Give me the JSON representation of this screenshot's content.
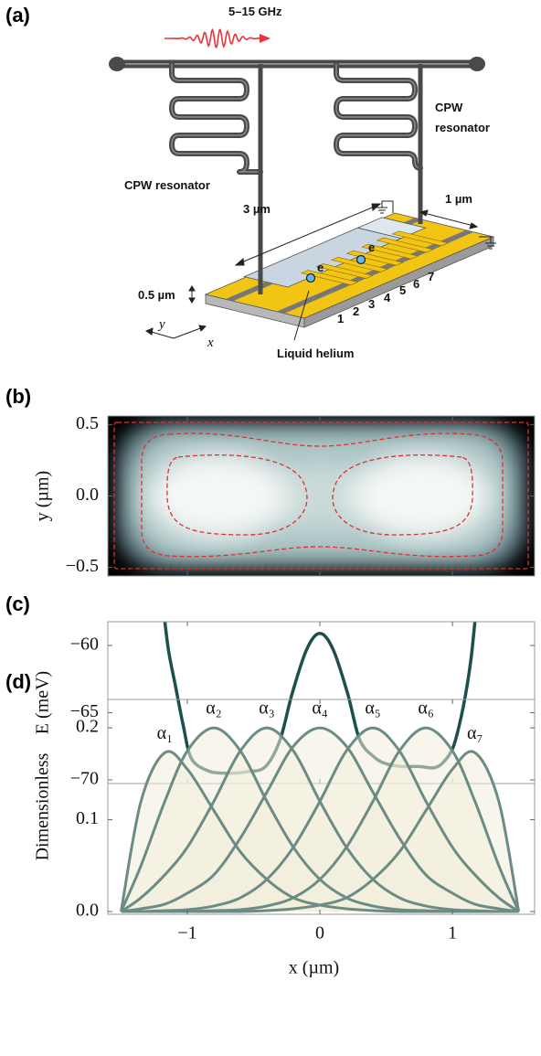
{
  "figure": {
    "panel_labels": [
      "(a)",
      "(b)",
      "(c)",
      "(d)"
    ]
  },
  "diagram": {
    "frequency": "5–15 GHz",
    "resonator_left": "CPW resonator",
    "resonator_right": [
      "CPW",
      "resonator"
    ],
    "length": "3 µm",
    "width": "1 µm",
    "thickness": "0.5 µm",
    "helium": "Liquid helium",
    "electrodes": [
      "1",
      "2",
      "3",
      "4",
      "5",
      "6",
      "7"
    ],
    "electrons": [
      "e",
      "e"
    ],
    "axis_y": "y",
    "axis_x": "x"
  },
  "chart_data": [
    {
      "type": "heatmap",
      "ylabel": "y (µm)",
      "xlim": [
        -1.6,
        1.62
      ],
      "ylim": [
        -0.56,
        0.56
      ],
      "xticks": [
        -1,
        0,
        1
      ],
      "xtick_labels": false,
      "yticks": [
        0.5,
        {
          "value": 0,
          "label": "0.0"
        },
        {
          "value": -0.5,
          "label": "−0.5"
        }
      ]
    },
    {
      "type": "line",
      "ylabel": "E (meV)",
      "xlim": [
        -1.6,
        1.62
      ],
      "ylim": [
        -70.27,
        -58.23
      ],
      "xticks": [
        -1,
        0,
        1
      ],
      "xtick_labels": false,
      "yticks": [
        {
          "value": -60,
          "label": "−60"
        },
        {
          "value": -65,
          "label": "−65"
        },
        {
          "value": -70,
          "label": "−70"
        }
      ],
      "color": "#1d4f4b",
      "x": [
        -1.17,
        -1.14,
        -1.09,
        -1.03,
        -0.97,
        -0.85,
        -0.72,
        -0.55,
        -0.41,
        -0.3,
        -0.21,
        -0.1,
        0,
        0.1,
        0.21,
        0.3,
        0.41,
        0.5,
        0.62,
        0.75,
        0.86,
        0.93,
        1.0,
        1.05,
        1.1,
        1.14,
        1.17
      ],
      "values": [
        -58.2,
        -60.5,
        -63,
        -66,
        -68.4,
        -69.3,
        -69.5,
        -69.4,
        -69.0,
        -67,
        -63.6,
        -60.3,
        -59.1,
        -60.3,
        -63.6,
        -67,
        -68.3,
        -68.8,
        -69.0,
        -69.0,
        -69.1,
        -68.7,
        -67.7,
        -66,
        -63.6,
        -61,
        -58.2
      ]
    },
    {
      "type": "area",
      "xlabel": "x (µm)",
      "ylabel": "Dimensionless",
      "xlim": [
        -1.6,
        1.62
      ],
      "ylim": [
        -0.003,
        0.231
      ],
      "xticks": [
        {
          "value": -1,
          "label": "−1"
        },
        0,
        1
      ],
      "xtick_labels": true,
      "yticks": [
        {
          "value": 0,
          "label": "0.0"
        },
        0.1,
        0.2
      ],
      "x": [
        -1.5,
        -1.35,
        -1.17,
        -1,
        -0.8,
        -0.6,
        -0.4,
        -0.2,
        0,
        0.2,
        0.4,
        0.6,
        0.8,
        1,
        1.17,
        1.35,
        1.5
      ],
      "series": [
        {
          "name": "α₁",
          "color": "#6b8c85",
          "fill": "#f3efdd",
          "values": [
            0,
            0.12,
            0.173,
            0.155,
            0.11,
            0.065,
            0.035,
            0.015,
            0.007,
            0.003,
            0.001,
            0,
            0,
            0,
            0,
            0,
            0
          ]
        },
        {
          "name": "α₂",
          "color": "#6b8c85",
          "fill": "#f3efdd",
          "values": [
            0,
            0.05,
            0.12,
            0.175,
            0.2,
            0.175,
            0.12,
            0.07,
            0.035,
            0.015,
            0.006,
            0.002,
            0.001,
            0,
            0,
            0,
            0
          ]
        },
        {
          "name": "α₃",
          "color": "#6b8c85",
          "fill": "#f3efdd",
          "values": [
            0,
            0.015,
            0.04,
            0.07,
            0.12,
            0.175,
            0.2,
            0.175,
            0.12,
            0.07,
            0.035,
            0.015,
            0.006,
            0.002,
            0.001,
            0,
            0
          ]
        },
        {
          "name": "α₄",
          "color": "#6b8c85",
          "fill": "#f3efdd",
          "values": [
            0,
            0.003,
            0.008,
            0.02,
            0.04,
            0.08,
            0.13,
            0.18,
            0.2,
            0.18,
            0.13,
            0.08,
            0.04,
            0.02,
            0.008,
            0.003,
            0
          ]
        },
        {
          "name": "α₅",
          "color": "#6b8c85",
          "fill": "#f3efdd",
          "values": [
            0,
            0,
            0.001,
            0.002,
            0.006,
            0.015,
            0.035,
            0.07,
            0.12,
            0.175,
            0.2,
            0.175,
            0.12,
            0.07,
            0.04,
            0.015,
            0
          ]
        },
        {
          "name": "α₆",
          "color": "#6b8c85",
          "fill": "#f3efdd",
          "values": [
            0,
            0,
            0,
            0,
            0.001,
            0.002,
            0.006,
            0.015,
            0.035,
            0.07,
            0.12,
            0.175,
            0.2,
            0.175,
            0.12,
            0.05,
            0
          ]
        },
        {
          "name": "α₇",
          "color": "#6b8c85",
          "fill": "#f3efdd",
          "values": [
            0,
            0,
            0,
            0,
            0,
            0,
            0.001,
            0.003,
            0.007,
            0.015,
            0.035,
            0.065,
            0.11,
            0.155,
            0.173,
            0.12,
            0
          ]
        }
      ]
    }
  ]
}
